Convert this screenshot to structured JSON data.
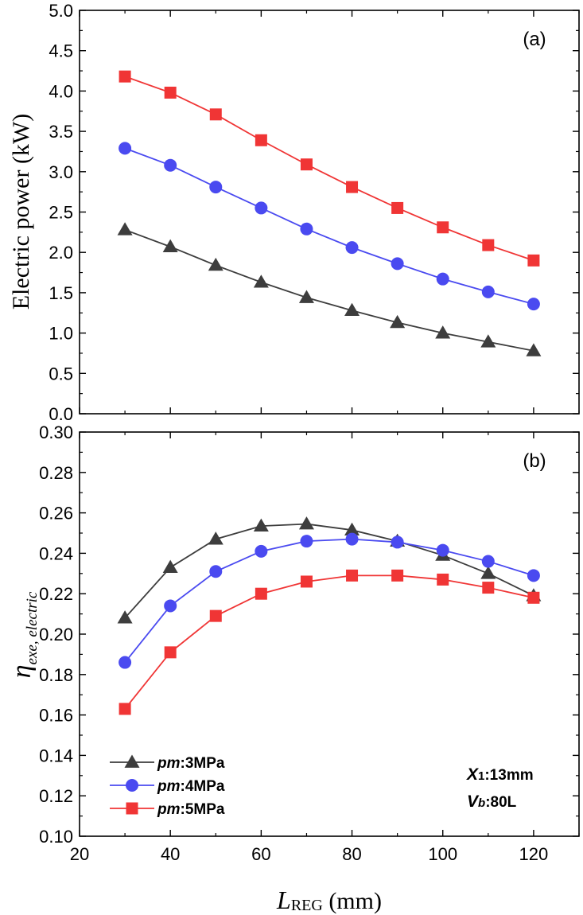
{
  "chart_data": [
    {
      "type": "line",
      "panel_label": "(a)",
      "ylabel": "Electric power (kW)",
      "xlim": [
        20,
        130
      ],
      "ylim": [
        0.0,
        5.0
      ],
      "yticks": [
        "0.0",
        "0.5",
        "1.0",
        "1.5",
        "2.0",
        "2.5",
        "3.0",
        "3.5",
        "4.0",
        "4.5",
        "5.0"
      ],
      "x": [
        30,
        40,
        50,
        60,
        70,
        80,
        90,
        100,
        110,
        120
      ],
      "series": [
        {
          "name_prefix": "pm",
          "name_suffix": ":3MPa",
          "color": "#3d3d3d",
          "marker": "triangle",
          "values": [
            2.28,
            2.07,
            1.84,
            1.63,
            1.44,
            1.28,
            1.13,
            1.0,
            0.89,
            0.78
          ]
        },
        {
          "name_prefix": "pm",
          "name_suffix": ":4MPa",
          "color": "#4a4af0",
          "marker": "circle",
          "values": [
            3.29,
            3.08,
            2.81,
            2.55,
            2.29,
            2.06,
            1.86,
            1.67,
            1.51,
            1.36
          ]
        },
        {
          "name_prefix": "pm",
          "name_suffix": ":5MPa",
          "color": "#f03535",
          "marker": "square",
          "values": [
            4.18,
            3.98,
            3.71,
            3.39,
            3.09,
            2.81,
            2.55,
            2.31,
            2.09,
            1.9
          ]
        }
      ]
    },
    {
      "type": "line",
      "panel_label": "(b)",
      "ylabel_main": "η",
      "ylabel_sub": "exe, electric",
      "xlabel_main": "L",
      "xlabel_sub": "REG",
      "xlabel_unit": " (mm)",
      "xlim": [
        20,
        130
      ],
      "ylim": [
        0.1,
        0.3
      ],
      "xticks": [
        "20",
        "40",
        "60",
        "80",
        "100",
        "120"
      ],
      "yticks": [
        "0.10",
        "0.12",
        "0.14",
        "0.16",
        "0.18",
        "0.20",
        "0.22",
        "0.24",
        "0.26",
        "0.28",
        "0.30"
      ],
      "x": [
        30,
        40,
        50,
        60,
        70,
        80,
        90,
        100,
        110,
        120
      ],
      "series": [
        {
          "name_prefix": "pm",
          "name_suffix": ":3MPa",
          "color": "#3d3d3d",
          "marker": "triangle",
          "values": [
            0.208,
            0.233,
            0.247,
            0.2535,
            0.2545,
            0.2515,
            0.246,
            0.239,
            0.23,
            0.219
          ]
        },
        {
          "name_prefix": "pm",
          "name_suffix": ":4MPa",
          "color": "#4a4af0",
          "marker": "circle",
          "values": [
            0.186,
            0.214,
            0.231,
            0.241,
            0.246,
            0.247,
            0.2455,
            0.2415,
            0.236,
            0.229
          ]
        },
        {
          "name_prefix": "pm",
          "name_suffix": ":5MPa",
          "color": "#f03535",
          "marker": "square",
          "values": [
            0.163,
            0.191,
            0.209,
            0.22,
            0.226,
            0.229,
            0.229,
            0.227,
            0.223,
            0.218
          ]
        }
      ],
      "legend_position": "bottom-left",
      "annotations": [
        {
          "main": "X",
          "sub": "1",
          "rest": ":13mm"
        },
        {
          "main": "V",
          "sub": "b",
          "rest": ":80L"
        }
      ]
    }
  ]
}
